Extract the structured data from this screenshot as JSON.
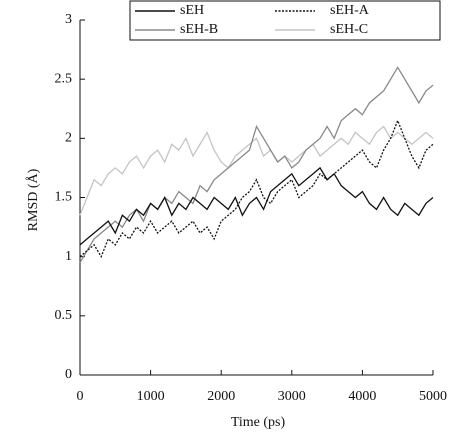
{
  "chart_data": {
    "type": "line",
    "xlabel": "Time (ps)",
    "ylabel": "RMSD (Å)",
    "x": [
      0,
      100,
      200,
      300,
      400,
      500,
      600,
      700,
      800,
      900,
      1000,
      1100,
      1200,
      1300,
      1400,
      1500,
      1600,
      1700,
      1800,
      1900,
      2000,
      2100,
      2200,
      2300,
      2400,
      2500,
      2600,
      2700,
      2800,
      2900,
      3000,
      3100,
      3200,
      3300,
      3400,
      3500,
      3600,
      3700,
      3800,
      3900,
      4000,
      4100,
      4200,
      4300,
      4400,
      4500,
      4600,
      4700,
      4800,
      4900,
      5000
    ],
    "series": [
      {
        "name": "sEH",
        "color": "#111111",
        "dash": "solid",
        "values": [
          1.1,
          1.15,
          1.2,
          1.25,
          1.3,
          1.2,
          1.35,
          1.3,
          1.4,
          1.35,
          1.45,
          1.4,
          1.5,
          1.35,
          1.45,
          1.4,
          1.5,
          1.45,
          1.4,
          1.5,
          1.45,
          1.4,
          1.5,
          1.35,
          1.45,
          1.5,
          1.4,
          1.55,
          1.6,
          1.65,
          1.7,
          1.6,
          1.65,
          1.7,
          1.75,
          1.65,
          1.7,
          1.6,
          1.55,
          1.5,
          1.55,
          1.45,
          1.4,
          1.5,
          1.4,
          1.35,
          1.45,
          1.4,
          1.35,
          1.45,
          1.5
        ]
      },
      {
        "name": "sEH-A",
        "color": "#111111",
        "dash": "dotted",
        "values": [
          1.0,
          1.05,
          1.1,
          1.0,
          1.15,
          1.1,
          1.2,
          1.15,
          1.25,
          1.2,
          1.3,
          1.2,
          1.25,
          1.3,
          1.2,
          1.25,
          1.3,
          1.2,
          1.25,
          1.15,
          1.3,
          1.35,
          1.4,
          1.5,
          1.55,
          1.65,
          1.5,
          1.45,
          1.55,
          1.6,
          1.65,
          1.5,
          1.55,
          1.6,
          1.7,
          1.65,
          1.7,
          1.75,
          1.8,
          1.85,
          1.9,
          1.8,
          1.75,
          1.9,
          2.0,
          2.15,
          2.0,
          1.85,
          1.75,
          1.9,
          1.95
        ]
      },
      {
        "name": "sEH-B",
        "color": "#888888",
        "dash": "solid",
        "values": [
          0.95,
          1.05,
          1.15,
          1.2,
          1.25,
          1.3,
          1.25,
          1.35,
          1.4,
          1.3,
          1.45,
          1.4,
          1.5,
          1.45,
          1.55,
          1.5,
          1.45,
          1.6,
          1.55,
          1.65,
          1.7,
          1.75,
          1.8,
          1.85,
          1.9,
          2.1,
          2.0,
          1.9,
          1.8,
          1.85,
          1.75,
          1.8,
          1.9,
          1.95,
          2.0,
          2.1,
          2.0,
          2.15,
          2.2,
          2.25,
          2.2,
          2.3,
          2.35,
          2.4,
          2.5,
          2.6,
          2.5,
          2.4,
          2.3,
          2.4,
          2.45
        ]
      },
      {
        "name": "sEH-C",
        "color": "#c4c4c4",
        "dash": "solid",
        "values": [
          1.35,
          1.5,
          1.65,
          1.6,
          1.7,
          1.75,
          1.7,
          1.8,
          1.85,
          1.75,
          1.85,
          1.9,
          1.8,
          1.95,
          1.9,
          2.0,
          1.85,
          1.95,
          2.05,
          1.9,
          1.8,
          1.75,
          1.85,
          1.9,
          1.95,
          2.0,
          1.85,
          1.9,
          1.8,
          1.85,
          1.8,
          1.85,
          1.9,
          1.95,
          1.85,
          1.9,
          1.95,
          2.0,
          1.95,
          2.05,
          2.0,
          1.95,
          2.05,
          2.1,
          2.0,
          2.05,
          2.0,
          1.95,
          2.0,
          2.05,
          2.0
        ]
      }
    ],
    "xlim": [
      0,
      5000
    ],
    "xticks": [
      0,
      1000,
      2000,
      3000,
      4000,
      5000
    ],
    "ylim": [
      0,
      3
    ],
    "yticks": [
      0,
      0.5,
      1,
      1.5,
      2,
      2.5,
      3
    ]
  }
}
